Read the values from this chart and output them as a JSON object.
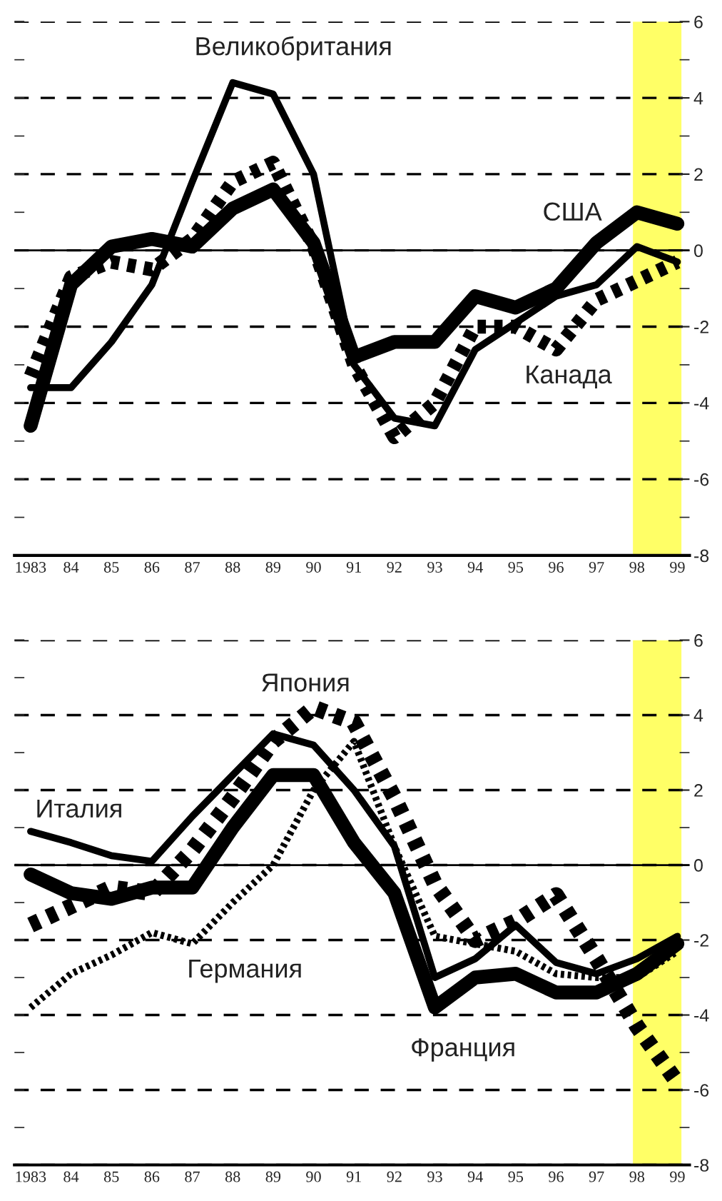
{
  "chart_data": [
    {
      "type": "line",
      "x": [
        1983,
        1984,
        1985,
        1986,
        1987,
        1988,
        1989,
        1990,
        1991,
        1992,
        1993,
        1994,
        1995,
        1996,
        1997,
        1998,
        1999
      ],
      "xlim": [
        1982.6,
        1999.3
      ],
      "xticks": [
        {
          "value": 1983,
          "label": "1983"
        },
        {
          "value": 1984,
          "label": "84"
        },
        {
          "value": 1985,
          "label": "85"
        },
        {
          "value": 1986,
          "label": "86"
        },
        {
          "value": 1987,
          "label": "87"
        },
        {
          "value": 1988,
          "label": "88"
        },
        {
          "value": 1989,
          "label": "89"
        },
        {
          "value": 1990,
          "label": "90"
        },
        {
          "value": 1991,
          "label": "91"
        },
        {
          "value": 1992,
          "label": "92"
        },
        {
          "value": 1993,
          "label": "93"
        },
        {
          "value": 1994,
          "label": "94"
        },
        {
          "value": 1995,
          "label": "95"
        },
        {
          "value": 1996,
          "label": "96"
        },
        {
          "value": 1997,
          "label": "97"
        },
        {
          "value": 1998,
          "label": "98"
        },
        {
          "value": 1999,
          "label": "99"
        }
      ],
      "ylim": [
        -8,
        6
      ],
      "yticks": [
        -8,
        -6,
        -4,
        -2,
        0,
        2,
        4,
        6
      ],
      "grid": "y",
      "legend": false,
      "ref_lines": [
        {
          "axis": "y",
          "value": 0,
          "color": "#000000",
          "line_style": "solid"
        }
      ],
      "bands": [
        {
          "axis": "x",
          "from": 1997.9,
          "to": 1999.1,
          "color": "#ffff66"
        }
      ],
      "series": [
        {
          "name": "Великобритания",
          "color": "#000000",
          "line_style": "solid",
          "values": [
            -3.6,
            -3.6,
            -2.4,
            -0.9,
            1.8,
            4.4,
            4.1,
            2.0,
            -3.0,
            -4.4,
            -4.6,
            -2.6,
            -1.9,
            -1.2,
            -0.9,
            0.1,
            -0.3
          ]
        },
        {
          "name": "США",
          "color": "#000000",
          "line_style": "solid",
          "values": [
            -4.6,
            -0.9,
            0.1,
            0.3,
            0.1,
            1.1,
            1.6,
            0.2,
            -2.8,
            -2.4,
            -2.4,
            -1.2,
            -1.5,
            -1.0,
            0.2,
            1.0,
            0.7
          ]
        },
        {
          "name": "Канада",
          "color": "#000000",
          "line_style": "dotted",
          "values": [
            -3.3,
            -0.7,
            -0.3,
            -0.5,
            0.3,
            1.8,
            2.3,
            0.1,
            -3.0,
            -4.9,
            -4.0,
            -2.0,
            -2.0,
            -2.6,
            -1.3,
            -0.8,
            -0.3
          ]
        }
      ]
    },
    {
      "type": "line",
      "x": [
        1983,
        1984,
        1985,
        1986,
        1987,
        1988,
        1989,
        1990,
        1991,
        1992,
        1993,
        1994,
        1995,
        1996,
        1997,
        1998,
        1999
      ],
      "xlim": [
        1982.6,
        1999.3
      ],
      "xticks": [
        {
          "value": 1983,
          "label": "1983"
        },
        {
          "value": 1984,
          "label": "84"
        },
        {
          "value": 1985,
          "label": "85"
        },
        {
          "value": 1986,
          "label": "86"
        },
        {
          "value": 1987,
          "label": "87"
        },
        {
          "value": 1988,
          "label": "88"
        },
        {
          "value": 1989,
          "label": "89"
        },
        {
          "value": 1990,
          "label": "90"
        },
        {
          "value": 1991,
          "label": "91"
        },
        {
          "value": 1992,
          "label": "92"
        },
        {
          "value": 1993,
          "label": "93"
        },
        {
          "value": 1994,
          "label": "94"
        },
        {
          "value": 1995,
          "label": "95"
        },
        {
          "value": 1996,
          "label": "96"
        },
        {
          "value": 1997,
          "label": "97"
        },
        {
          "value": 1998,
          "label": "98"
        },
        {
          "value": 1999,
          "label": "99"
        }
      ],
      "ylim": [
        -8,
        6
      ],
      "yticks": [
        -8,
        -6,
        -4,
        -2,
        0,
        2,
        4,
        6
      ],
      "grid": "y",
      "legend": false,
      "ref_lines": [
        {
          "axis": "y",
          "value": 0,
          "color": "#000000",
          "line_style": "solid"
        }
      ],
      "bands": [
        {
          "axis": "x",
          "from": 1997.9,
          "to": 1999.1,
          "color": "#ffff66"
        }
      ],
      "series": [
        {
          "name": "Япония",
          "color": "#000000",
          "line_style": "dotted",
          "values": [
            -1.6,
            -1.1,
            -0.6,
            -0.75,
            0.4,
            1.8,
            3.3,
            4.2,
            3.8,
            1.8,
            -0.5,
            -2.0,
            -1.5,
            -0.8,
            -2.5,
            -4.3,
            -5.8
          ]
        },
        {
          "name": "Италия",
          "color": "#000000",
          "line_style": "solid",
          "values": [
            0.9,
            0.6,
            0.25,
            0.1,
            1.3,
            2.4,
            3.5,
            3.2,
            2.0,
            0.5,
            -3.0,
            -2.5,
            -1.6,
            -2.6,
            -2.9,
            -2.5,
            -1.9
          ]
        },
        {
          "name": "Германия",
          "color": "#000000",
          "line_style": "dotted",
          "values": [
            -3.8,
            -2.9,
            -2.4,
            -1.8,
            -2.1,
            -1.0,
            0.0,
            2.0,
            3.3,
            0.5,
            -1.9,
            -2.1,
            -2.3,
            -2.9,
            -3.0,
            -3.0,
            -2.3
          ]
        },
        {
          "name": "Франция",
          "color": "#000000",
          "line_style": "solid",
          "values": [
            -0.25,
            -0.75,
            -0.9,
            -0.6,
            -0.6,
            1.0,
            2.4,
            2.4,
            0.6,
            -0.75,
            -3.8,
            -3.0,
            -2.9,
            -3.4,
            -3.4,
            -2.9,
            -2.1
          ]
        }
      ]
    }
  ]
}
